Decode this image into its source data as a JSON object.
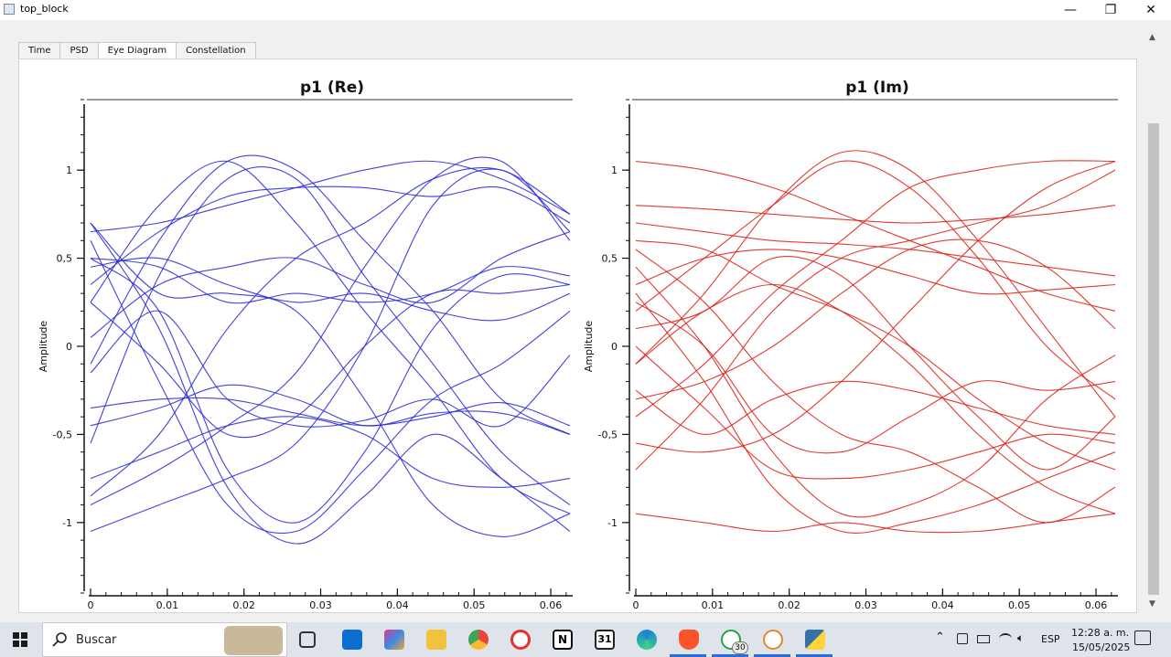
{
  "window": {
    "title": "top_block",
    "minimize": "—",
    "maximize": "❐",
    "close": "✕"
  },
  "tabs": [
    {
      "label": "Time",
      "active": false
    },
    {
      "label": "PSD",
      "active": false
    },
    {
      "label": "Eye Diagram",
      "active": true
    },
    {
      "label": "Constellation",
      "active": false
    }
  ],
  "chart_data": [
    {
      "type": "line",
      "title": "p1 (Re)",
      "ylabel": "Amplitude",
      "xlabel": "",
      "xlim": [
        0,
        0.0625
      ],
      "ylim": [
        -1.4,
        1.4
      ],
      "color": "#2d2dd8",
      "xticks": [
        "0",
        "0.01",
        "0.02",
        "0.03",
        "0.04",
        "0.05",
        "0.06"
      ],
      "yticks": [
        "1",
        "0,5",
        "0",
        "-0,5",
        "-1"
      ],
      "series": [
        {
          "values": [
            0.6,
            -0.2,
            -0.9,
            -1.05,
            -0.7,
            -0.3,
            -0.1,
            0.2
          ]
        },
        {
          "values": [
            0.5,
            0.2,
            -0.7,
            -1.0,
            -0.6,
            0.1,
            0.4,
            0.35
          ]
        },
        {
          "values": [
            0.7,
            0.1,
            -0.8,
            -1.12,
            -0.85,
            -0.5,
            -0.75,
            -1.05
          ]
        },
        {
          "values": [
            -0.1,
            0.6,
            1.05,
            1.0,
            0.6,
            0.2,
            -0.3,
            -0.5
          ]
        },
        {
          "values": [
            0.25,
            0.8,
            1.05,
            0.7,
            0.2,
            -0.25,
            -0.75,
            -0.95
          ]
        },
        {
          "values": [
            -0.55,
            0.4,
            0.95,
            0.95,
            0.4,
            -0.1,
            -0.6,
            -0.9
          ]
        },
        {
          "values": [
            0.5,
            0.45,
            0.25,
            0.3,
            0.25,
            0.3,
            0.45,
            0.4
          ]
        },
        {
          "values": [
            0.45,
            0.5,
            0.35,
            0.25,
            0.3,
            0.2,
            0.15,
            0.3
          ]
        },
        {
          "values": [
            0.05,
            0.35,
            0.45,
            0.5,
            0.35,
            0.25,
            0.5,
            0.65
          ]
        },
        {
          "values": [
            -0.35,
            -0.3,
            -0.3,
            -0.38,
            -0.45,
            -0.4,
            -0.32,
            -0.45
          ]
        },
        {
          "values": [
            -0.45,
            -0.35,
            -0.22,
            -0.3,
            -0.45,
            -0.38,
            -0.38,
            -0.5
          ]
        },
        {
          "values": [
            -0.15,
            0.2,
            -0.3,
            -0.45,
            -0.42,
            -0.3,
            -0.45,
            -0.05
          ]
        },
        {
          "values": [
            -0.75,
            -0.6,
            -0.45,
            -0.4,
            -0.5,
            -0.75,
            -0.8,
            -0.75
          ]
        },
        {
          "values": [
            -0.9,
            -0.7,
            -0.45,
            -0.15,
            0.45,
            0.95,
            1.05,
            0.6
          ]
        },
        {
          "values": [
            -1.05,
            -0.9,
            -0.75,
            -0.55,
            0.0,
            0.8,
            1.0,
            0.65
          ]
        },
        {
          "values": [
            -0.85,
            -0.5,
            0.1,
            0.5,
            0.7,
            0.95,
            1.0,
            0.75
          ]
        },
        {
          "values": [
            0.65,
            0.7,
            0.8,
            0.9,
            1.0,
            1.05,
            0.95,
            0.75
          ]
        },
        {
          "values": [
            0.35,
            0.65,
            0.85,
            0.9,
            0.9,
            0.85,
            0.9,
            0.7
          ]
        },
        {
          "values": [
            0.7,
            0.3,
            0.3,
            0.2,
            -0.3,
            -0.9,
            -1.08,
            -0.95
          ]
        },
        {
          "values": [
            0.25,
            -0.1,
            -0.5,
            -0.4,
            0.0,
            0.3,
            0.3,
            0.35
          ]
        }
      ]
    },
    {
      "type": "line",
      "title": "p1 (Im)",
      "ylabel": "Amplitude",
      "xlabel": "",
      "xlim": [
        0,
        0.0625
      ],
      "ylim": [
        -1.4,
        1.4
      ],
      "color": "#e0241c",
      "xticks": [
        "0",
        "0.01",
        "0.02",
        "0.03",
        "0.04",
        "0.05",
        "0.06"
      ],
      "yticks": [
        "1",
        "0,5",
        "0",
        "-0,5",
        "-1"
      ],
      "series": [
        {
          "values": [
            1.05,
            1.0,
            0.9,
            0.75,
            0.6,
            0.45,
            0.3,
            0.2
          ]
        },
        {
          "values": [
            0.8,
            0.78,
            0.75,
            0.72,
            0.7,
            0.72,
            0.75,
            0.8
          ]
        },
        {
          "values": [
            0.7,
            0.65,
            0.6,
            0.58,
            0.55,
            0.5,
            0.45,
            0.4
          ]
        },
        {
          "values": [
            0.35,
            0.5,
            0.55,
            0.5,
            0.4,
            0.3,
            0.32,
            0.35
          ]
        },
        {
          "values": [
            0.2,
            0.5,
            0.8,
            1.05,
            0.9,
            0.5,
            0.0,
            -0.3
          ]
        },
        {
          "values": [
            -0.1,
            0.3,
            0.8,
            1.1,
            1.0,
            0.6,
            0.1,
            -0.4
          ]
        },
        {
          "values": [
            -0.4,
            -0.1,
            0.3,
            0.6,
            0.9,
            1.0,
            1.05,
            1.05
          ]
        },
        {
          "values": [
            -0.7,
            -0.3,
            0.2,
            0.5,
            0.6,
            0.7,
            0.8,
            1.0
          ]
        },
        {
          "values": [
            -0.55,
            -0.6,
            -0.5,
            -0.2,
            0.2,
            0.6,
            0.9,
            1.05
          ]
        },
        {
          "values": [
            0.45,
            0.0,
            -0.6,
            -0.95,
            -0.9,
            -0.7,
            -0.3,
            -0.05
          ]
        },
        {
          "values": [
            0.3,
            -0.2,
            -0.8,
            -1.05,
            -1.0,
            -0.9,
            -0.75,
            -0.6
          ]
        },
        {
          "values": [
            0.0,
            -0.35,
            -0.7,
            -0.75,
            -0.7,
            -0.6,
            -0.5,
            -0.55
          ]
        },
        {
          "values": [
            -0.95,
            -1.0,
            -1.05,
            -1.0,
            -1.05,
            -1.05,
            -1.0,
            -0.95
          ]
        },
        {
          "values": [
            -0.25,
            -0.5,
            -0.3,
            -0.2,
            -0.25,
            -0.35,
            -0.45,
            -0.5
          ]
        },
        {
          "values": [
            0.6,
            0.55,
            0.35,
            0.2,
            0.0,
            -0.3,
            -0.55,
            -0.7
          ]
        },
        {
          "values": [
            0.1,
            0.2,
            0.5,
            0.4,
            0.0,
            -0.4,
            -0.7,
            -0.4
          ]
        },
        {
          "values": [
            -0.3,
            -0.2,
            0.0,
            0.3,
            0.55,
            0.6,
            0.45,
            0.1
          ]
        },
        {
          "values": [
            0.55,
            0.25,
            -0.2,
            -0.5,
            -0.6,
            -0.8,
            -1.0,
            -0.8
          ]
        },
        {
          "values": [
            -0.1,
            0.2,
            0.35,
            0.2,
            -0.1,
            -0.5,
            -0.8,
            -0.95
          ]
        },
        {
          "values": [
            0.25,
            0.0,
            -0.5,
            -0.6,
            -0.4,
            -0.2,
            -0.25,
            -0.2
          ]
        }
      ]
    }
  ],
  "taskbar": {
    "search_placeholder": "Buscar",
    "apps": [
      "task-view-icon",
      "outlook-icon",
      "m365-icon",
      "file-explorer-icon",
      "chrome-icon",
      "opera-icon",
      "notion-icon",
      "calendar-icon",
      "edge-icon",
      "brave-icon",
      "whatsapp-icon",
      "gnuradio-icon",
      "python-icon"
    ],
    "calendar_label": "31",
    "whatsapp_badge": "30",
    "lang": "ESP",
    "time": "12:28 a. m.",
    "date": "15/05/2025"
  }
}
